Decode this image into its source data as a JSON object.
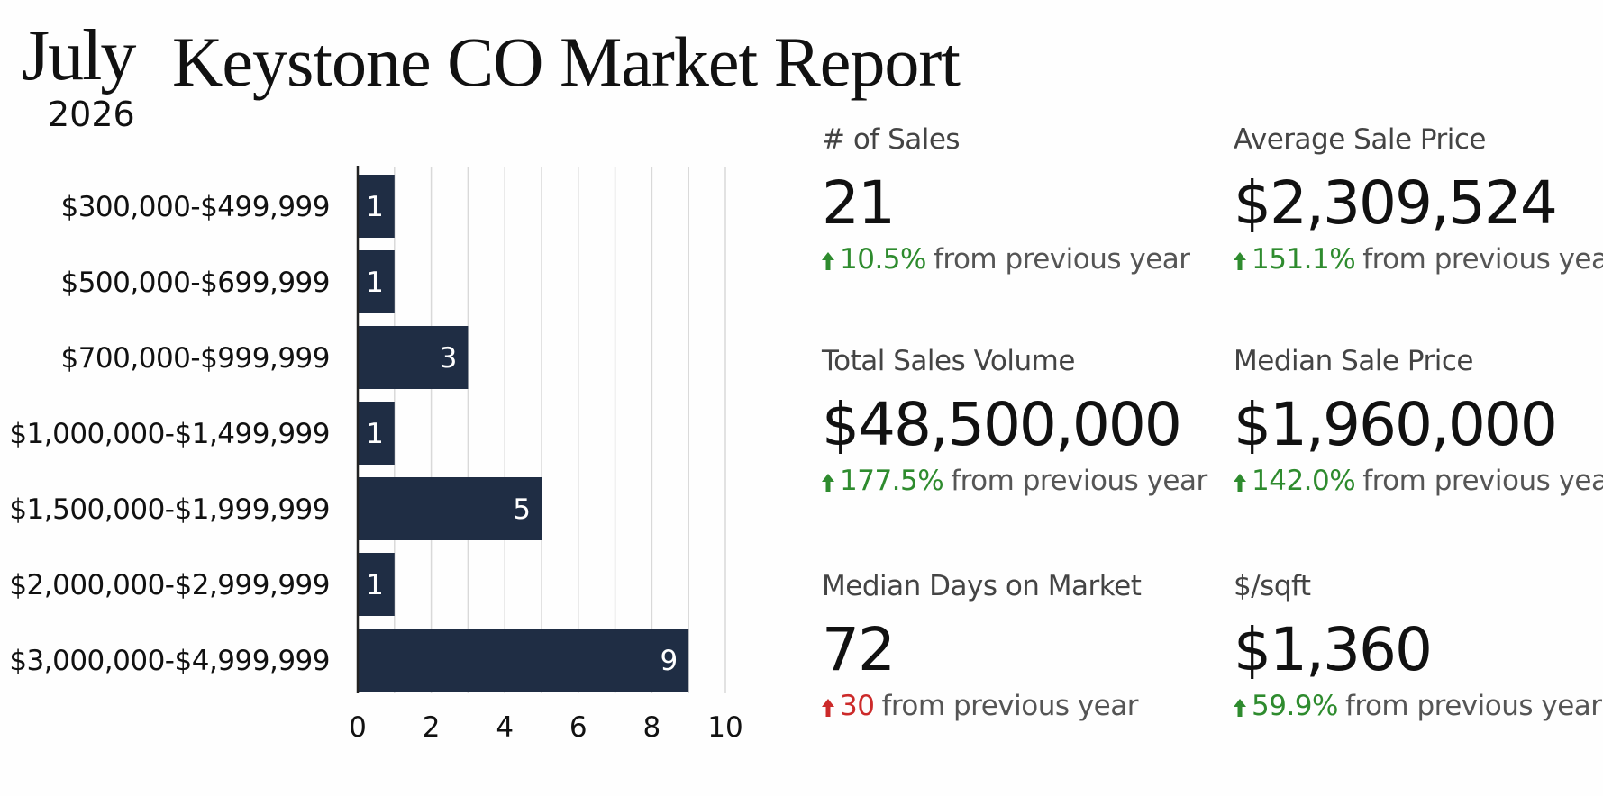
{
  "header": {
    "month": "July",
    "year": "2026",
    "title": "Keystone CO Market Report"
  },
  "colors": {
    "bar": "#1f2d44",
    "bar_label": "#ffffff",
    "grid": "#d9d9d9",
    "axis": "#222222",
    "positive": "#2e8b2e",
    "negative": "#cc2a2a"
  },
  "chart_data": {
    "type": "bar",
    "orientation": "horizontal",
    "categories": [
      "$300,000-$499,999",
      "$500,000-$699,999",
      "$700,000-$999,999",
      "$1,000,000-$1,499,999",
      "$1,500,000-$1,999,999",
      "$2,000,000-$2,999,999",
      "$3,000,000-$4,999,999"
    ],
    "values": [
      1,
      1,
      3,
      1,
      5,
      1,
      9
    ],
    "xlim": [
      0,
      10
    ],
    "xticks": [
      0,
      2,
      4,
      6,
      8,
      10
    ],
    "grid": true,
    "data_labels": true
  },
  "stats": [
    {
      "label": "# of Sales",
      "value": "21",
      "change": "10.5%",
      "direction": "up",
      "suffix": "from previous year",
      "arrow_icon": "arrow-up-icon"
    },
    {
      "label": "Average Sale Price",
      "value": "$2,309,524",
      "change": "151.1%",
      "direction": "up",
      "suffix": "from previous year",
      "arrow_icon": "arrow-up-icon"
    },
    {
      "label": "Total Sales Volume",
      "value": "$48,500,000",
      "change": "177.5%",
      "direction": "up",
      "suffix": "from previous year",
      "arrow_icon": "arrow-up-icon"
    },
    {
      "label": "Median Sale Price",
      "value": "$1,960,000",
      "change": "142.0%",
      "direction": "up",
      "suffix": "from previous year",
      "arrow_icon": "arrow-up-icon"
    },
    {
      "label": "Median Days on Market",
      "value": "72",
      "change": "30",
      "direction": "down",
      "suffix": "from previous year",
      "arrow_icon": "arrow-up-icon"
    },
    {
      "label": "$/sqft",
      "value": "$1,360",
      "change": "59.9%",
      "direction": "up",
      "suffix": "from previous year",
      "arrow_icon": "arrow-up-icon"
    }
  ]
}
